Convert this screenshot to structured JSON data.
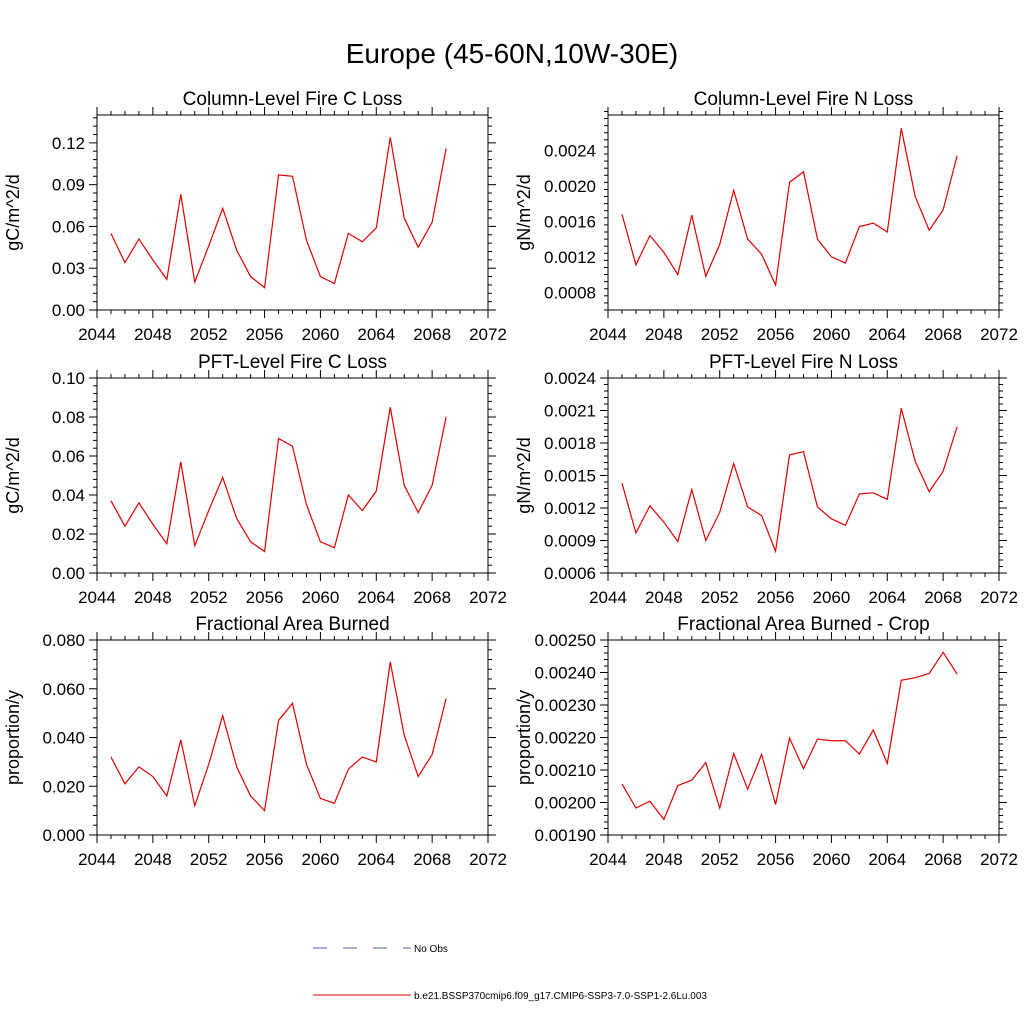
{
  "main_title": "Europe (45-60N,10W-30E)",
  "legend": {
    "entries": [
      {
        "label": "No Obs",
        "color": "#5a5fa8",
        "dash": true
      },
      {
        "label": "b.e21.BSSP370cmip6.f09_g17.CMIP6-SSP3-7.0-SSP1-2.6Lu.003",
        "color": "#e00000",
        "dash": false
      }
    ]
  },
  "chart_data": [
    {
      "type": "line",
      "title": "Column-Level Fire C Loss",
      "ylabel": "gC/m^2/d",
      "xlim": [
        2044,
        2072
      ],
      "ylim": [
        0,
        0.14
      ],
      "xticks": [
        2044,
        2048,
        2052,
        2056,
        2060,
        2064,
        2068,
        2072
      ],
      "yticks": [
        0.0,
        0.03,
        0.06,
        0.09,
        0.12
      ],
      "ytick_labels": [
        "0.00",
        "0.03",
        "0.06",
        "0.09",
        "0.12"
      ],
      "x": [
        2045,
        2046,
        2047,
        2048,
        2049,
        2050,
        2051,
        2052,
        2053,
        2054,
        2055,
        2056,
        2057,
        2058,
        2059,
        2060,
        2061,
        2062,
        2063,
        2064,
        2065,
        2066,
        2067,
        2068,
        2069
      ],
      "series": [
        {
          "name": "b.e21.BSSP370cmip6.f09_g17.CMIP6-SSP3-7.0-SSP1-2.6Lu.003",
          "color": "#e00000",
          "values": [
            0.055,
            0.034,
            0.051,
            0.036,
            0.022,
            0.083,
            0.02,
            0.046,
            0.073,
            0.043,
            0.024,
            0.016,
            0.097,
            0.096,
            0.05,
            0.024,
            0.019,
            0.055,
            0.049,
            0.059,
            0.124,
            0.066,
            0.045,
            0.063,
            0.116
          ]
        }
      ]
    },
    {
      "type": "line",
      "title": "Column-Level Fire N Loss",
      "ylabel": "gN/m^2/d",
      "xlim": [
        2044,
        2072
      ],
      "ylim": [
        0.0006,
        0.0028
      ],
      "xticks": [
        2044,
        2048,
        2052,
        2056,
        2060,
        2064,
        2068,
        2072
      ],
      "yticks": [
        0.0008,
        0.0012,
        0.0016,
        0.002,
        0.0024
      ],
      "ytick_labels": [
        "0.0008",
        "0.0012",
        "0.0016",
        "0.0020",
        "0.0024"
      ],
      "x": [
        2045,
        2046,
        2047,
        2048,
        2049,
        2050,
        2051,
        2052,
        2053,
        2054,
        2055,
        2056,
        2057,
        2058,
        2059,
        2060,
        2061,
        2062,
        2063,
        2064,
        2065,
        2066,
        2067,
        2068,
        2069
      ],
      "series": [
        {
          "name": "b.e21.BSSP370cmip6.f09_g17.CMIP6-SSP3-7.0-SSP1-2.6Lu.003",
          "color": "#e00000",
          "values": [
            0.00168,
            0.00111,
            0.00144,
            0.00125,
            0.001,
            0.00167,
            0.00098,
            0.00134,
            0.00195,
            0.0014,
            0.00123,
            0.00088,
            0.00204,
            0.00216,
            0.0014,
            0.0012,
            0.00113,
            0.00154,
            0.00158,
            0.00148,
            0.00265,
            0.00188,
            0.0015,
            0.00173,
            0.00234
          ]
        }
      ]
    },
    {
      "type": "line",
      "title": "PFT-Level Fire C Loss",
      "ylabel": "gC/m^2/d",
      "xlim": [
        2044,
        2072
      ],
      "ylim": [
        0,
        0.1
      ],
      "xticks": [
        2044,
        2048,
        2052,
        2056,
        2060,
        2064,
        2068,
        2072
      ],
      "yticks": [
        0.0,
        0.02,
        0.04,
        0.06,
        0.08,
        0.1
      ],
      "ytick_labels": [
        "0.00",
        "0.02",
        "0.04",
        "0.06",
        "0.08",
        "0.10"
      ],
      "x": [
        2045,
        2046,
        2047,
        2048,
        2049,
        2050,
        2051,
        2052,
        2053,
        2054,
        2055,
        2056,
        2057,
        2058,
        2059,
        2060,
        2061,
        2062,
        2063,
        2064,
        2065,
        2066,
        2067,
        2068,
        2069
      ],
      "series": [
        {
          "name": "b.e21.BSSP370cmip6.f09_g17.CMIP6-SSP3-7.0-SSP1-2.6Lu.003",
          "color": "#e00000",
          "values": [
            0.037,
            0.024,
            0.036,
            0.025,
            0.015,
            0.057,
            0.014,
            0.032,
            0.049,
            0.028,
            0.016,
            0.011,
            0.069,
            0.065,
            0.035,
            0.016,
            0.013,
            0.04,
            0.032,
            0.042,
            0.085,
            0.045,
            0.031,
            0.045,
            0.08
          ]
        }
      ]
    },
    {
      "type": "line",
      "title": "PFT-Level Fire N Loss",
      "ylabel": "gN/m^2/d",
      "xlim": [
        2044,
        2072
      ],
      "ylim": [
        0.0006,
        0.0024
      ],
      "xticks": [
        2044,
        2048,
        2052,
        2056,
        2060,
        2064,
        2068,
        2072
      ],
      "yticks": [
        0.0006,
        0.0009,
        0.0012,
        0.0015,
        0.0018,
        0.0021,
        0.0024
      ],
      "ytick_labels": [
        "0.0006",
        "0.0009",
        "0.0012",
        "0.0015",
        "0.0018",
        "0.0021",
        "0.0024"
      ],
      "x": [
        2045,
        2046,
        2047,
        2048,
        2049,
        2050,
        2051,
        2052,
        2053,
        2054,
        2055,
        2056,
        2057,
        2058,
        2059,
        2060,
        2061,
        2062,
        2063,
        2064,
        2065,
        2066,
        2067,
        2068,
        2069
      ],
      "series": [
        {
          "name": "b.e21.BSSP370cmip6.f09_g17.CMIP6-SSP3-7.0-SSP1-2.6Lu.003",
          "color": "#e00000",
          "values": [
            0.00143,
            0.00097,
            0.00122,
            0.00107,
            0.00089,
            0.00137,
            0.0009,
            0.00116,
            0.00161,
            0.00121,
            0.00113,
            0.0008,
            0.00169,
            0.00172,
            0.00121,
            0.0011,
            0.00104,
            0.00133,
            0.00134,
            0.00128,
            0.00212,
            0.00163,
            0.00135,
            0.00154,
            0.00195
          ]
        }
      ]
    },
    {
      "type": "line",
      "title": "Fractional Area Burned",
      "ylabel": "proportion/y",
      "xlim": [
        2044,
        2072
      ],
      "ylim": [
        0,
        0.08
      ],
      "xticks": [
        2044,
        2048,
        2052,
        2056,
        2060,
        2064,
        2068,
        2072
      ],
      "yticks": [
        0.0,
        0.02,
        0.04,
        0.06,
        0.08
      ],
      "ytick_labels": [
        "0.000",
        "0.020",
        "0.040",
        "0.060",
        "0.080"
      ],
      "x": [
        2045,
        2046,
        2047,
        2048,
        2049,
        2050,
        2051,
        2052,
        2053,
        2054,
        2055,
        2056,
        2057,
        2058,
        2059,
        2060,
        2061,
        2062,
        2063,
        2064,
        2065,
        2066,
        2067,
        2068,
        2069
      ],
      "series": [
        {
          "name": "b.e21.BSSP370cmip6.f09_g17.CMIP6-SSP3-7.0-SSP1-2.6Lu.003",
          "color": "#e00000",
          "values": [
            0.032,
            0.021,
            0.028,
            0.024,
            0.016,
            0.039,
            0.012,
            0.029,
            0.049,
            0.028,
            0.016,
            0.01,
            0.047,
            0.054,
            0.029,
            0.015,
            0.013,
            0.027,
            0.032,
            0.03,
            0.071,
            0.041,
            0.024,
            0.033,
            0.056
          ]
        }
      ]
    },
    {
      "type": "line",
      "title": "Fractional Area Burned - Crop",
      "ylabel": "proportion/y",
      "xlim": [
        2044,
        2072
      ],
      "ylim": [
        0.0019,
        0.0025
      ],
      "xticks": [
        2044,
        2048,
        2052,
        2056,
        2060,
        2064,
        2068,
        2072
      ],
      "yticks": [
        0.0019,
        0.002,
        0.0021,
        0.0022,
        0.0023,
        0.0024,
        0.0025
      ],
      "ytick_labels": [
        "0.00190",
        "0.00200",
        "0.00210",
        "0.00220",
        "0.00230",
        "0.00240",
        "0.00250"
      ],
      "x": [
        2045,
        2046,
        2047,
        2048,
        2049,
        2050,
        2051,
        2052,
        2053,
        2054,
        2055,
        2056,
        2057,
        2058,
        2059,
        2060,
        2061,
        2062,
        2063,
        2064,
        2065,
        2066,
        2067,
        2068,
        2069
      ],
      "series": [
        {
          "name": "b.e21.BSSP370cmip6.f09_g17.CMIP6-SSP3-7.0-SSP1-2.6Lu.003",
          "color": "#e00000",
          "values": [
            0.002057,
            0.001983,
            0.002004,
            0.001948,
            0.002052,
            0.002069,
            0.002123,
            0.001983,
            0.002151,
            0.002041,
            0.002148,
            0.001994,
            0.002198,
            0.002104,
            0.002195,
            0.00219,
            0.00219,
            0.002149,
            0.002223,
            0.00212,
            0.002376,
            0.002384,
            0.002397,
            0.002462,
            0.002395
          ]
        }
      ]
    }
  ]
}
